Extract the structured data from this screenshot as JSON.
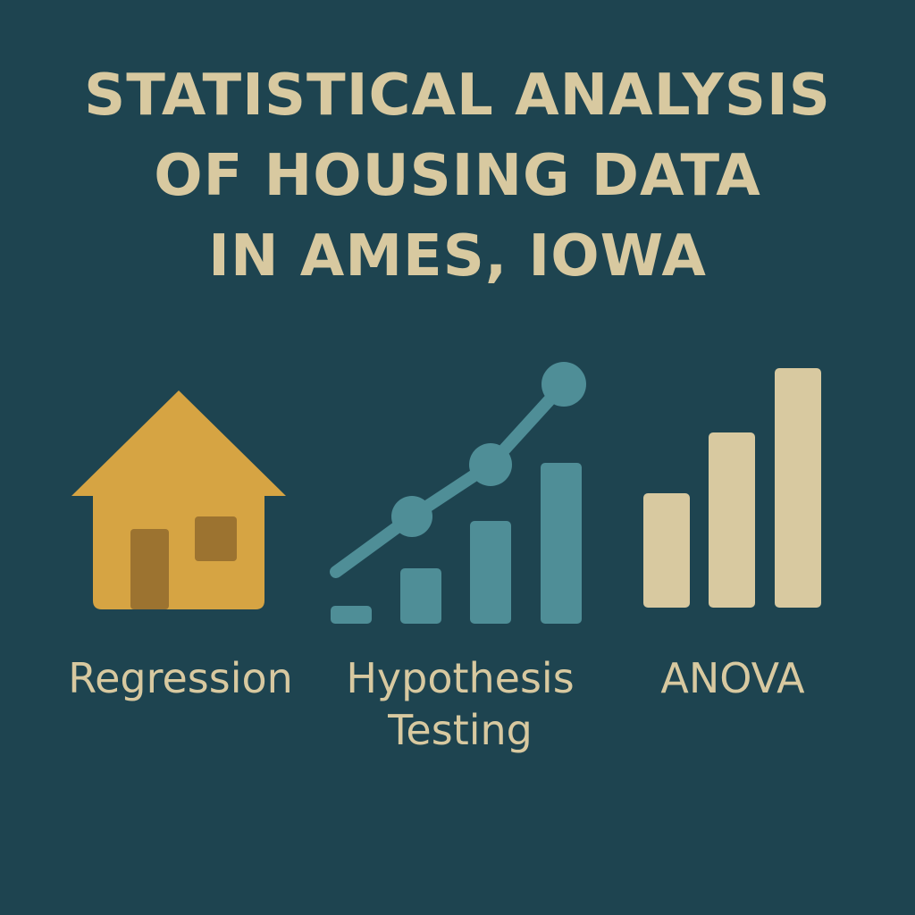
{
  "title": {
    "line1": "STATISTICAL ANALYSIS",
    "line2": "OF HOUSING DATA",
    "line3": "IN AMES, IOWA"
  },
  "panels": [
    {
      "label": "Regression",
      "icon": "house-icon"
    },
    {
      "label_line1": "Hypothesis",
      "label_line2": "Testing",
      "icon": "rising-bar-line-icon"
    },
    {
      "label": "ANOVA",
      "icon": "bar-chart-icon"
    }
  ],
  "colors": {
    "background": "#1e4450",
    "title": "#d8c9a0",
    "house": "#d6a443",
    "house_detail": "#9c7330",
    "teal": "#4f8e97",
    "tan": "#d8c9a0"
  }
}
